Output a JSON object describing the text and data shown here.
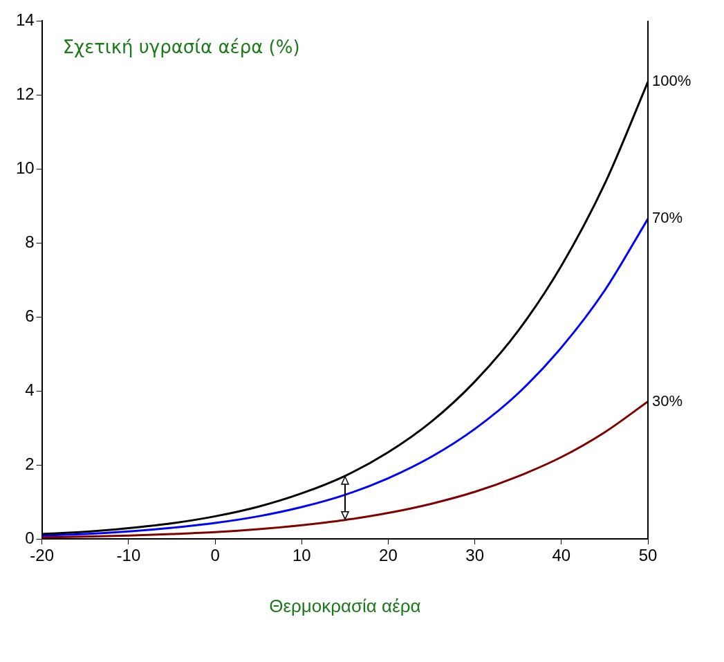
{
  "chart_data": {
    "type": "line",
    "xlabel": "Θερμοκρασία αέρα",
    "annotations": [
      "Σχετική υγρασία αέρα (%)"
    ],
    "x": [
      -20,
      -15,
      -10,
      -5,
      0,
      5,
      10,
      15,
      20,
      25,
      30,
      35,
      40,
      45,
      50
    ],
    "series": [
      {
        "name": "100%",
        "color": "#000000",
        "values": [
          0.13,
          0.19,
          0.29,
          0.42,
          0.61,
          0.87,
          1.23,
          1.7,
          2.34,
          3.17,
          4.25,
          5.62,
          7.38,
          9.59,
          12.35
        ]
      },
      {
        "name": "70%",
        "color": "#0000ff",
        "values": [
          0.09,
          0.13,
          0.2,
          0.3,
          0.43,
          0.61,
          0.86,
          1.19,
          1.64,
          2.22,
          2.97,
          3.93,
          5.17,
          6.71,
          8.65
        ]
      },
      {
        "name": "30%",
        "color": "#800000",
        "values": [
          0.04,
          0.06,
          0.09,
          0.13,
          0.18,
          0.26,
          0.37,
          0.51,
          0.7,
          0.95,
          1.27,
          1.69,
          2.21,
          2.88,
          3.71
        ]
      }
    ],
    "xlim": [
      -20,
      50
    ],
    "xticks": [
      -20,
      -10,
      0,
      10,
      20,
      30,
      40,
      50
    ],
    "ylim": [
      0,
      14
    ],
    "yticks": [
      0,
      2,
      4,
      6,
      8,
      10,
      12,
      14
    ],
    "grid": false,
    "legend": false,
    "marker": "none",
    "line_style": "solid"
  }
}
